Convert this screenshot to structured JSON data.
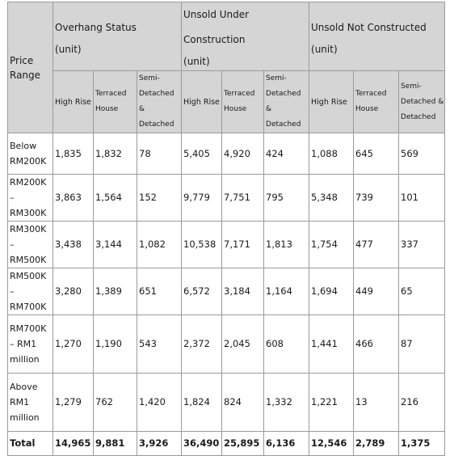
{
  "table": {
    "price_range_header": "Price Range",
    "groups": [
      {
        "title": "Overhang Status",
        "unit": "(unit)"
      },
      {
        "title": "Unsold Under Construction",
        "unit": "(unit)"
      },
      {
        "title": "Unsold Not Constructed",
        "unit": "(unit)"
      }
    ],
    "subheaders": [
      "High Rise",
      "Terraced House",
      "Semi-Detached & Detached"
    ],
    "rows": [
      {
        "label": "Below RM200K",
        "values": [
          "1,835",
          "1,832",
          "78",
          "5,405",
          "4,920",
          "424",
          "1,088",
          "645",
          "569"
        ]
      },
      {
        "label": "RM200K – RM300K",
        "values": [
          "3,863",
          "1,564",
          "152",
          "9,779",
          "7,751",
          "795",
          "5,348",
          "739",
          "101"
        ]
      },
      {
        "label": "RM300K – RM500K",
        "values": [
          "3,438",
          "3,144",
          "1,082",
          "10,538",
          "7,171",
          "1,813",
          "1,754",
          "477",
          "337"
        ]
      },
      {
        "label": "RM500K – RM700K",
        "values": [
          "3,280",
          "1,389",
          "651",
          "6,572",
          "3,184",
          "1,164",
          "1,694",
          "449",
          "65"
        ]
      },
      {
        "label": "RM700K – RM1 million",
        "values": [
          "1,270",
          "1,190",
          "543",
          "2,372",
          "2,045",
          "608",
          "1,441",
          "466",
          "87"
        ]
      },
      {
        "label": "Above RM1 million",
        "values": [
          "1,279",
          "762",
          "1,420",
          "1,824",
          "824",
          "1,332",
          "1,221",
          "13",
          "216"
        ]
      },
      {
        "label": "Total",
        "values": [
          "14,965",
          "9,881",
          "3,926",
          "36,490",
          "25,895",
          "6,136",
          "12,546",
          "2,789",
          "1,375"
        ]
      }
    ]
  }
}
